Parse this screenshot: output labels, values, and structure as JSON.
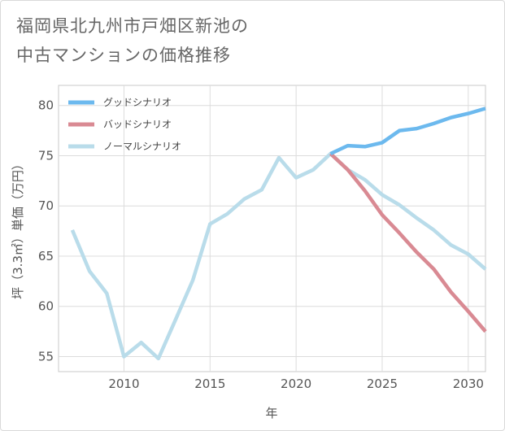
{
  "title": {
    "line1": "福岡県北九州市戸畑区新池の",
    "line2": "中古マンションの価格推移"
  },
  "chart_data": {
    "type": "line",
    "title": "福岡県北九州市戸畑区新池の中古マンションの価格推移",
    "xlabel": "年",
    "ylabel": "坪（3.3㎡）単価（万円）",
    "xlim": [
      2006.2,
      2031
    ],
    "ylim": [
      53.5,
      82
    ],
    "xticks": [
      2010,
      2015,
      2020,
      2025,
      2030
    ],
    "yticks": [
      55,
      60,
      65,
      70,
      75,
      80
    ],
    "grid": true,
    "legend_position": "top-left",
    "series": [
      {
        "name": "グッドシナリオ",
        "color": "#6cb9ee",
        "x": [
          2022,
          2023,
          2024,
          2025,
          2026,
          2027,
          2028,
          2029,
          2030,
          2031
        ],
        "y": [
          75.2,
          76.0,
          75.9,
          76.3,
          77.5,
          77.7,
          78.2,
          78.8,
          79.2,
          79.7
        ]
      },
      {
        "name": "バッドシナリオ",
        "color": "#d98a93",
        "x": [
          2022,
          2023,
          2024,
          2025,
          2026,
          2027,
          2028,
          2029,
          2030,
          2031
        ],
        "y": [
          75.2,
          73.6,
          71.5,
          69.1,
          67.3,
          65.4,
          63.7,
          61.4,
          59.5,
          57.5
        ]
      },
      {
        "name": "ノーマルシナリオ",
        "color": "#b9dcea",
        "x": [
          2007,
          2008,
          2009,
          2010,
          2011,
          2012,
          2013,
          2014,
          2015,
          2016,
          2017,
          2018,
          2019,
          2020,
          2021,
          2022,
          2023,
          2024,
          2025,
          2026,
          2027,
          2028,
          2029,
          2030,
          2031
        ],
        "y": [
          67.6,
          63.5,
          61.3,
          55.0,
          56.4,
          54.8,
          58.7,
          62.6,
          68.2,
          69.2,
          70.7,
          71.6,
          74.8,
          72.8,
          73.6,
          75.2,
          73.6,
          72.6,
          71.1,
          70.1,
          68.8,
          67.6,
          66.1,
          65.2,
          63.7
        ]
      }
    ]
  }
}
